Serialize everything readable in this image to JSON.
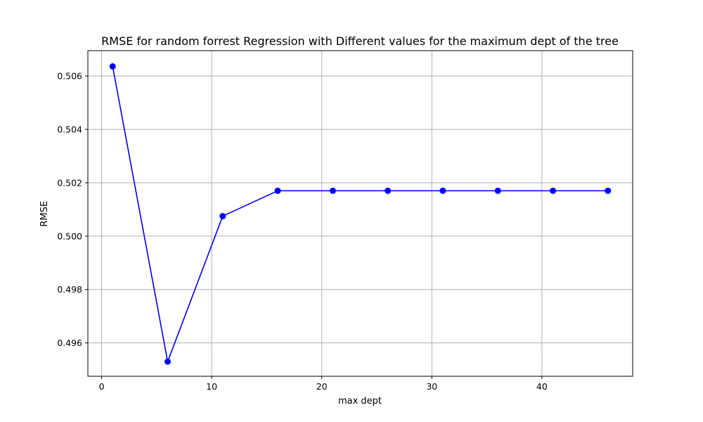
{
  "chart_data": {
    "type": "line",
    "title": "RMSE for random forrest Regression with Different values for the maximum dept of the tree",
    "xlabel": "max dept",
    "ylabel": "RMSE",
    "xlim": [
      -1.25,
      48.25
    ],
    "ylim": [
      0.49475,
      0.50695
    ],
    "xticks": [
      0,
      10,
      20,
      30,
      40
    ],
    "xtick_labels": [
      "0",
      "10",
      "20",
      "30",
      "40"
    ],
    "yticks": [
      0.496,
      0.498,
      0.5,
      0.502,
      0.504,
      0.506
    ],
    "ytick_labels": [
      "0.496",
      "0.498",
      "0.500",
      "0.502",
      "0.504",
      "0.506"
    ],
    "grid": true,
    "series": [
      {
        "color": "#0000ff",
        "marker": "circle",
        "x": [
          1,
          6,
          11,
          16,
          21,
          26,
          31,
          36,
          41,
          46
        ],
        "y": [
          0.50636,
          0.4953,
          0.50075,
          0.5017,
          0.5017,
          0.5017,
          0.5017,
          0.5017,
          0.5017,
          0.5017
        ]
      }
    ]
  }
}
